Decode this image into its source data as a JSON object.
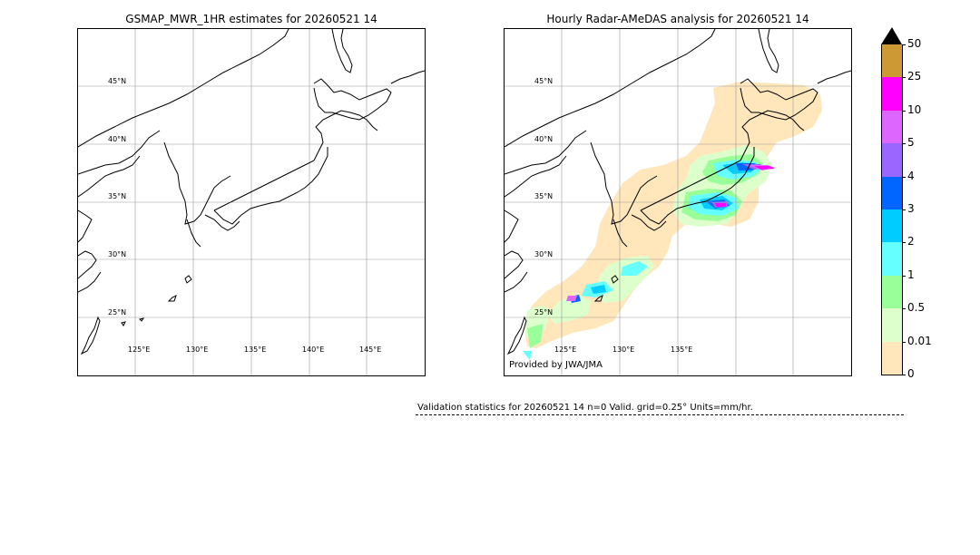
{
  "left_panel": {
    "title": "GSMAP_MWR_1HR estimates for 20260521 14",
    "lat_labels": [
      "45°N",
      "40°N",
      "35°N",
      "30°N",
      "25°N"
    ],
    "lon_labels": [
      "125°E",
      "130°E",
      "135°E",
      "140°E",
      "145°E"
    ]
  },
  "right_panel": {
    "title": "Hourly Radar-AMeDAS analysis for 20260521 14",
    "lat_labels": [
      "45°N",
      "40°N",
      "35°N",
      "30°N",
      "25°N"
    ],
    "lon_labels": [
      "125°E",
      "130°E",
      "135°E"
    ],
    "provider": "Provided by JWA/JMA"
  },
  "colorbar": {
    "ticks": [
      "50",
      "25",
      "10",
      "5",
      "4",
      "3",
      "2",
      "1",
      "0.5",
      "0.01",
      "0"
    ],
    "colors": [
      "#cc9933",
      "#ff00ff",
      "#dd66ff",
      "#9966ff",
      "#0066ff",
      "#00ccff",
      "#66ffff",
      "#99ff99",
      "#ddffcc",
      "#ffe6bb"
    ],
    "extend_color": "#000000"
  },
  "validation": {
    "text": "Validation statistics for 20260521 14  n=0 Valid. grid=0.25° Units=mm/hr."
  }
}
